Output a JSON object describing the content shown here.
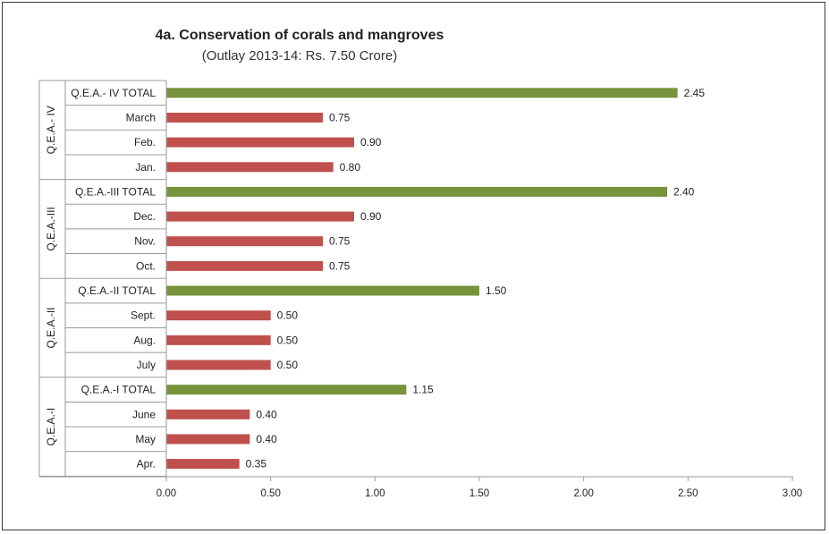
{
  "chart_data": {
    "type": "bar",
    "orientation": "horizontal",
    "title": "4a. Conservation of corals and mangroves",
    "subtitle": "(Outlay 2013-14: Rs. 7.50 Crore)",
    "xlabel": "",
    "ylabel": "",
    "xlim": [
      0,
      3.0
    ],
    "x_ticks": [
      "0.00",
      "0.50",
      "1.00",
      "1.50",
      "2.00",
      "2.50",
      "3.00"
    ],
    "grid": false,
    "legend": "none",
    "colors": {
      "month": "#c0504d",
      "total": "#77933c"
    },
    "groups": [
      {
        "name": "Q.E.A.- IV",
        "bars": [
          {
            "label": "Q.E.A.- IV TOTAL",
            "value": 2.45,
            "value_label": "2.45",
            "kind": "total"
          },
          {
            "label": "March",
            "value": 0.75,
            "value_label": "0.75",
            "kind": "month"
          },
          {
            "label": "Feb.",
            "value": 0.9,
            "value_label": "0.90",
            "kind": "month"
          },
          {
            "label": "Jan.",
            "value": 0.8,
            "value_label": "0.80",
            "kind": "month"
          }
        ]
      },
      {
        "name": "Q.E.A.-III",
        "bars": [
          {
            "label": "Q.E.A.-III TOTAL",
            "value": 2.4,
            "value_label": "2.40",
            "kind": "total"
          },
          {
            "label": "Dec.",
            "value": 0.9,
            "value_label": "0.90",
            "kind": "month"
          },
          {
            "label": "Nov.",
            "value": 0.75,
            "value_label": "0.75",
            "kind": "month"
          },
          {
            "label": "Oct.",
            "value": 0.75,
            "value_label": "0.75",
            "kind": "month"
          }
        ]
      },
      {
        "name": "Q.E.A.-II",
        "bars": [
          {
            "label": "Q.E.A.-II TOTAL",
            "value": 1.5,
            "value_label": "1.50",
            "kind": "total"
          },
          {
            "label": "Sept.",
            "value": 0.5,
            "value_label": "0.50",
            "kind": "month"
          },
          {
            "label": "Aug.",
            "value": 0.5,
            "value_label": "0.50",
            "kind": "month"
          },
          {
            "label": "July",
            "value": 0.5,
            "value_label": "0.50",
            "kind": "month"
          }
        ]
      },
      {
        "name": "Q.E.A.-I",
        "bars": [
          {
            "label": "Q.E.A.-I TOTAL",
            "value": 1.15,
            "value_label": "1.15",
            "kind": "total"
          },
          {
            "label": "June",
            "value": 0.4,
            "value_label": "0.40",
            "kind": "month"
          },
          {
            "label": "May",
            "value": 0.4,
            "value_label": "0.40",
            "kind": "month"
          },
          {
            "label": "Apr.",
            "value": 0.35,
            "value_label": "0.35",
            "kind": "month"
          }
        ]
      }
    ]
  }
}
